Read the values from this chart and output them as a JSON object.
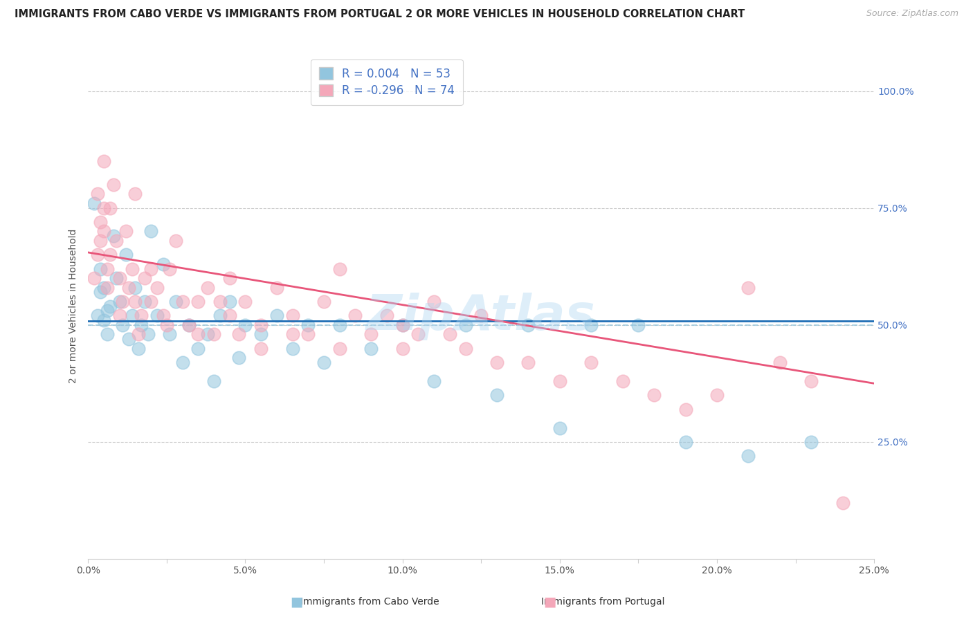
{
  "title": "IMMIGRANTS FROM CABO VERDE VS IMMIGRANTS FROM PORTUGAL 2 OR MORE VEHICLES IN HOUSEHOLD CORRELATION CHART",
  "source": "Source: ZipAtlas.com",
  "ylabel": "2 or more Vehicles in Household",
  "xlim": [
    0.0,
    0.25
  ],
  "ylim": [
    0.0,
    1.08
  ],
  "cabo_verde_R": 0.004,
  "cabo_verde_N": 53,
  "portugal_R": -0.296,
  "portugal_N": 74,
  "cabo_verde_color": "#92c5de",
  "portugal_color": "#f4a7b9",
  "cabo_verde_line_color": "#1f6eb5",
  "portugal_line_color": "#e8567a",
  "dashed_line_color": "#92c5de",
  "dashed_line_y": 0.5,
  "watermark": "ZipAtlas",
  "cabo_verde_x": [
    0.002,
    0.003,
    0.004,
    0.004,
    0.005,
    0.005,
    0.006,
    0.006,
    0.007,
    0.008,
    0.009,
    0.01,
    0.011,
    0.012,
    0.013,
    0.014,
    0.015,
    0.016,
    0.017,
    0.018,
    0.019,
    0.02,
    0.022,
    0.024,
    0.026,
    0.028,
    0.03,
    0.032,
    0.035,
    0.038,
    0.04,
    0.042,
    0.045,
    0.048,
    0.05,
    0.055,
    0.06,
    0.065,
    0.07,
    0.075,
    0.08,
    0.09,
    0.1,
    0.11,
    0.12,
    0.13,
    0.14,
    0.15,
    0.16,
    0.175,
    0.19,
    0.21,
    0.23
  ],
  "cabo_verde_y": [
    0.76,
    0.52,
    0.57,
    0.62,
    0.51,
    0.58,
    0.53,
    0.48,
    0.54,
    0.69,
    0.6,
    0.55,
    0.5,
    0.65,
    0.47,
    0.52,
    0.58,
    0.45,
    0.5,
    0.55,
    0.48,
    0.7,
    0.52,
    0.63,
    0.48,
    0.55,
    0.42,
    0.5,
    0.45,
    0.48,
    0.38,
    0.52,
    0.55,
    0.43,
    0.5,
    0.48,
    0.52,
    0.45,
    0.5,
    0.42,
    0.5,
    0.45,
    0.5,
    0.38,
    0.5,
    0.35,
    0.5,
    0.28,
    0.5,
    0.5,
    0.25,
    0.22,
    0.25
  ],
  "portugal_x": [
    0.002,
    0.003,
    0.004,
    0.004,
    0.005,
    0.005,
    0.006,
    0.006,
    0.007,
    0.008,
    0.009,
    0.01,
    0.011,
    0.012,
    0.013,
    0.014,
    0.015,
    0.016,
    0.017,
    0.018,
    0.02,
    0.022,
    0.024,
    0.026,
    0.028,
    0.03,
    0.032,
    0.035,
    0.038,
    0.04,
    0.042,
    0.045,
    0.048,
    0.05,
    0.055,
    0.06,
    0.065,
    0.07,
    0.075,
    0.08,
    0.085,
    0.09,
    0.095,
    0.1,
    0.105,
    0.11,
    0.115,
    0.12,
    0.125,
    0.13,
    0.14,
    0.15,
    0.16,
    0.17,
    0.18,
    0.19,
    0.2,
    0.21,
    0.22,
    0.23,
    0.003,
    0.005,
    0.007,
    0.01,
    0.015,
    0.02,
    0.025,
    0.035,
    0.045,
    0.055,
    0.065,
    0.08,
    0.1,
    0.24
  ],
  "portugal_y": [
    0.6,
    0.65,
    0.72,
    0.68,
    0.75,
    0.7,
    0.62,
    0.58,
    0.65,
    0.8,
    0.68,
    0.6,
    0.55,
    0.7,
    0.58,
    0.62,
    0.55,
    0.48,
    0.52,
    0.6,
    0.55,
    0.58,
    0.52,
    0.62,
    0.68,
    0.55,
    0.5,
    0.55,
    0.58,
    0.48,
    0.55,
    0.52,
    0.48,
    0.55,
    0.5,
    0.58,
    0.52,
    0.48,
    0.55,
    0.45,
    0.52,
    0.48,
    0.52,
    0.45,
    0.48,
    0.55,
    0.48,
    0.45,
    0.52,
    0.42,
    0.42,
    0.38,
    0.42,
    0.38,
    0.35,
    0.32,
    0.35,
    0.58,
    0.42,
    0.38,
    0.78,
    0.85,
    0.75,
    0.52,
    0.78,
    0.62,
    0.5,
    0.48,
    0.6,
    0.45,
    0.48,
    0.62,
    0.5,
    0.12
  ],
  "cabo_verde_line_x0": 0.0,
  "cabo_verde_line_y0": 0.508,
  "cabo_verde_line_x1": 0.25,
  "cabo_verde_line_y1": 0.508,
  "portugal_line_x0": 0.0,
  "portugal_line_y0": 0.655,
  "portugal_line_x1": 0.25,
  "portugal_line_y1": 0.375
}
